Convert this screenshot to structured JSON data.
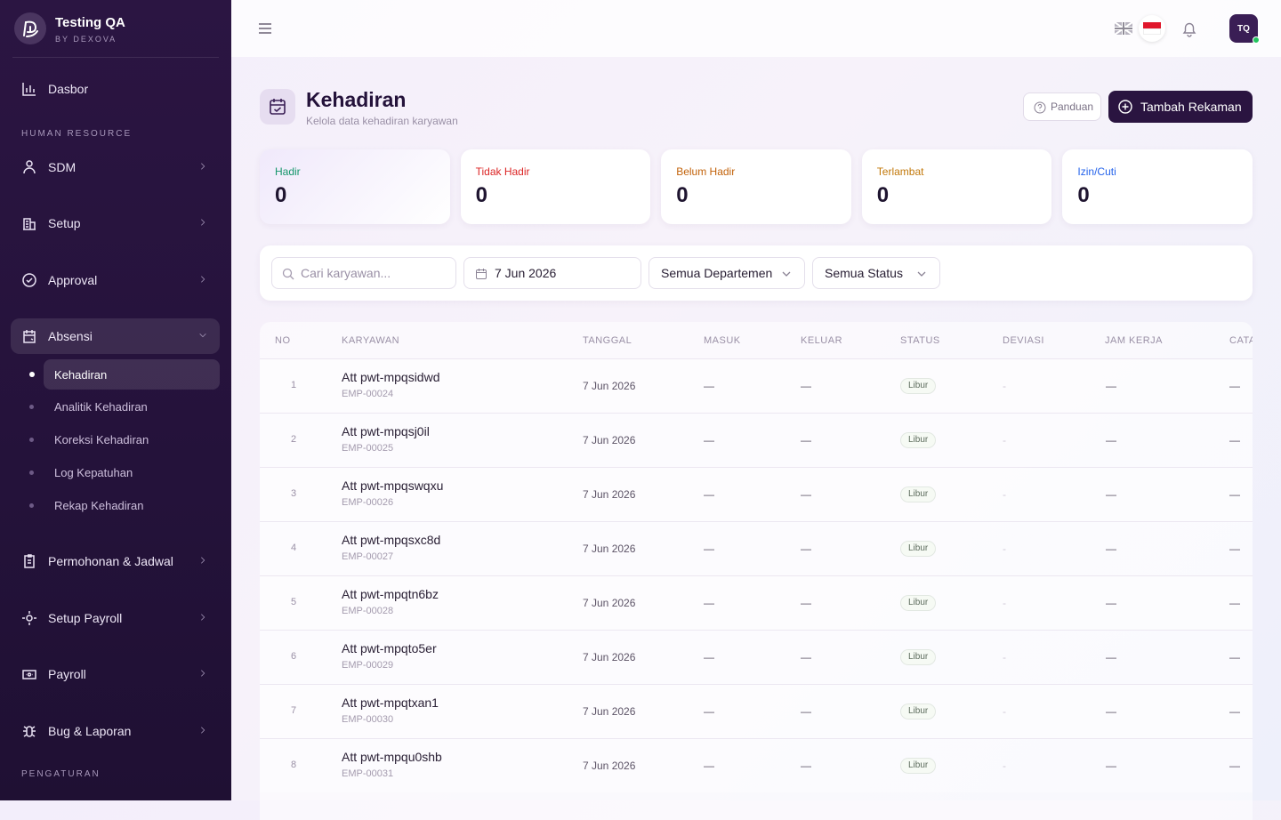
{
  "sidebar": {
    "brand": {
      "name": "Testing QA",
      "tagline": "BY DEXOVA"
    },
    "dashboard": "Dasbor",
    "sections": [
      {
        "title": "HUMAN RESOURCE",
        "items": [
          {
            "label": "SDM"
          },
          {
            "label": "Setup"
          },
          {
            "label": "Approval"
          },
          {
            "label": "Absensi",
            "children": [
              "Kehadiran",
              "Analitik Kehadiran",
              "Koreksi Kehadiran",
              "Log Kepatuhan",
              "Rekap Kehadiran"
            ]
          },
          {
            "label": "Permohonan & Jadwal"
          },
          {
            "label": "Setup Payroll"
          },
          {
            "label": "Payroll"
          },
          {
            "label": "Bug & Laporan"
          }
        ]
      },
      {
        "title": "PENGATURAN"
      }
    ]
  },
  "header": {
    "avatar": "TQ"
  },
  "page": {
    "title": "Kehadiran",
    "subtitle": "Kelola data kehadiran karyawan",
    "help_button": "Panduan",
    "add_button": "Tambah Rekaman"
  },
  "stats": [
    {
      "label": "Hadir",
      "value": 0
    },
    {
      "label": "Tidak Hadir",
      "value": 0
    },
    {
      "label": "Belum Hadir",
      "value": 0
    },
    {
      "label": "Terlambat",
      "value": 0
    },
    {
      "label": "Izin/Cuti",
      "value": 0
    }
  ],
  "filters": {
    "search_placeholder": "Cari karyawan...",
    "date": "7 Jun 2026",
    "department": "Semua Departemen",
    "status": "Semua Status"
  },
  "table": {
    "columns": [
      "NO",
      "KARYAWAN",
      "TANGGAL",
      "MASUK",
      "KELUAR",
      "STATUS",
      "DEVIASI",
      "JAM KERJA",
      "CATATAN"
    ],
    "rows": [
      {
        "no": 1,
        "name": "Att pwt-mpqsidwd",
        "code": "EMP-00024",
        "date": "7 Jun 2026",
        "in": "—",
        "out": "—",
        "status": "Libur",
        "deviation": "-",
        "hours": "—",
        "notes": "—"
      },
      {
        "no": 2,
        "name": "Att pwt-mpqsj0il",
        "code": "EMP-00025",
        "date": "7 Jun 2026",
        "in": "—",
        "out": "—",
        "status": "Libur",
        "deviation": "-",
        "hours": "—",
        "notes": "—"
      },
      {
        "no": 3,
        "name": "Att pwt-mpqswqxu",
        "code": "EMP-00026",
        "date": "7 Jun 2026",
        "in": "—",
        "out": "—",
        "status": "Libur",
        "deviation": "-",
        "hours": "—",
        "notes": "—"
      },
      {
        "no": 4,
        "name": "Att pwt-mpqsxc8d",
        "code": "EMP-00027",
        "date": "7 Jun 2026",
        "in": "—",
        "out": "—",
        "status": "Libur",
        "deviation": "-",
        "hours": "—",
        "notes": "—"
      },
      {
        "no": 5,
        "name": "Att pwt-mpqtn6bz",
        "code": "EMP-00028",
        "date": "7 Jun 2026",
        "in": "—",
        "out": "—",
        "status": "Libur",
        "deviation": "-",
        "hours": "—",
        "notes": "—"
      },
      {
        "no": 6,
        "name": "Att pwt-mpqto5er",
        "code": "EMP-00029",
        "date": "7 Jun 2026",
        "in": "—",
        "out": "—",
        "status": "Libur",
        "deviation": "-",
        "hours": "—",
        "notes": "—"
      },
      {
        "no": 7,
        "name": "Att pwt-mpqtxan1",
        "code": "EMP-00030",
        "date": "7 Jun 2026",
        "in": "—",
        "out": "—",
        "status": "Libur",
        "deviation": "-",
        "hours": "—",
        "notes": "—"
      },
      {
        "no": 8,
        "name": "Att pwt-mpqu0shb",
        "code": "EMP-00031",
        "date": "7 Jun 2026",
        "in": "—",
        "out": "—",
        "status": "Libur",
        "deviation": "-",
        "hours": "—",
        "notes": "—"
      }
    ]
  }
}
